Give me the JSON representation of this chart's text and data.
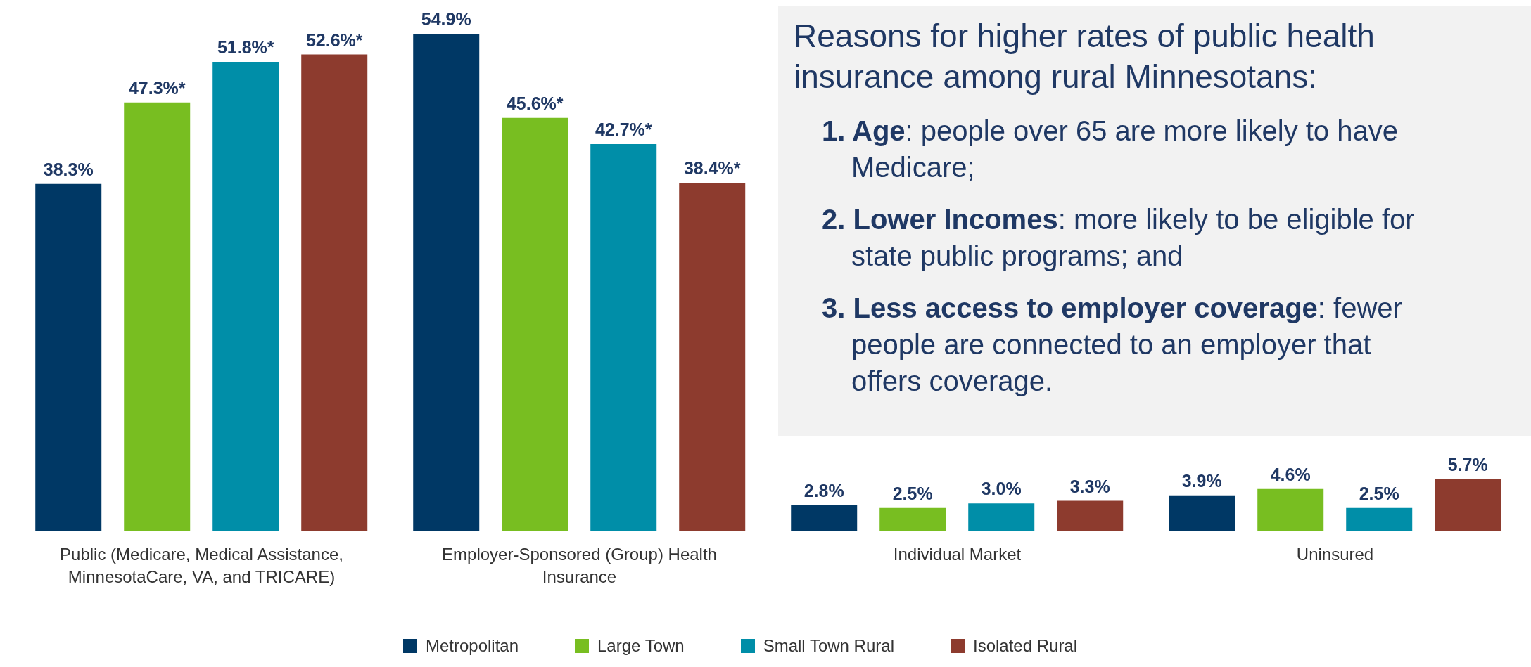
{
  "chart_data": {
    "type": "bar",
    "categories": [
      "Public (Medicare, Medical Assistance, MinnesotaCare, VA, and TRICARE)",
      "Employer-Sponsored (Group) Health Insurance",
      "Individual Market",
      "Uninsured"
    ],
    "series": [
      {
        "name": "Metropolitan",
        "color": "#003865",
        "values": [
          38.3,
          54.9,
          2.8,
          3.9
        ],
        "value_labels": [
          "38.3%",
          "54.9%",
          "2.8%",
          "3.9%"
        ]
      },
      {
        "name": "Large Town",
        "color": "#78be21",
        "values": [
          47.3,
          45.6,
          2.5,
          4.6
        ],
        "value_labels": [
          "47.3%*",
          "45.6%*",
          "2.5%",
          "4.6%"
        ]
      },
      {
        "name": "Small Town Rural",
        "color": "#008ea8",
        "values": [
          51.8,
          42.7,
          3.0,
          2.5
        ],
        "value_labels": [
          "51.8%*",
          "42.7%*",
          "3.0%",
          "2.5%"
        ]
      },
      {
        "name": "Isolated Rural",
        "color": "#8d3b2e",
        "values": [
          52.6,
          38.4,
          3.3,
          5.7
        ],
        "value_labels": [
          "52.6%*",
          "38.4%*",
          "3.3%",
          "5.7%"
        ]
      }
    ],
    "annotations": [
      "Reasons for higher rates of public health insurance among rural Minnesotans:",
      "1. Age: people over 65 are more likely to have Medicare;",
      "2. Lower Incomes: more likely to be eligible for state public programs; and",
      "3. Less access to employer coverage: fewer people are connected to an employer that offers coverage."
    ],
    "legend": "bottom"
  }
}
